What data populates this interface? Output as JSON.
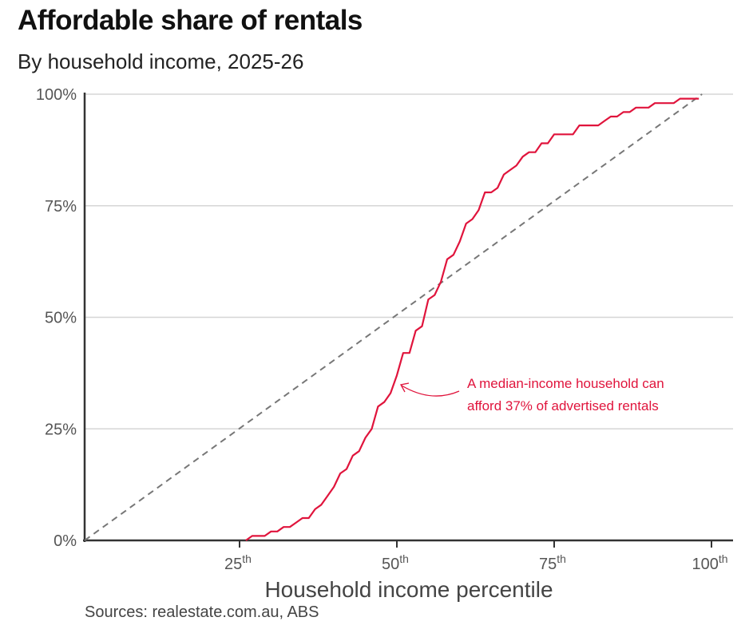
{
  "chart_data": {
    "type": "line",
    "title": "Affordable share of rentals",
    "subtitle": "By household income, 2025-26",
    "xlabel": "Household income percentile",
    "ylabel": "",
    "source": "Sources: realestate.com.au, ABS",
    "xlim": [
      0,
      100
    ],
    "ylim": [
      0,
      100
    ],
    "grid": true,
    "x_ticks": [
      {
        "value": 25,
        "label": "25",
        "sup": "th"
      },
      {
        "value": 50,
        "label": "50",
        "sup": "th"
      },
      {
        "value": 75,
        "label": "75",
        "sup": "th"
      },
      {
        "value": 100,
        "label": "100",
        "sup": "th"
      }
    ],
    "y_ticks": [
      {
        "value": 0,
        "label": "0%"
      },
      {
        "value": 25,
        "label": "25%"
      },
      {
        "value": 50,
        "label": "50%"
      },
      {
        "value": 75,
        "label": "75%"
      },
      {
        "value": 100,
        "label": "100%"
      }
    ],
    "series_color": "#e0143c",
    "reference_color": "#777777",
    "reference_line": [
      [
        0,
        0
      ],
      [
        98.5,
        100
      ]
    ],
    "series": [
      {
        "x": [
          26,
          27,
          28,
          29,
          30,
          31,
          32,
          33,
          34,
          35,
          36,
          37,
          38,
          39,
          40,
          41,
          42,
          43,
          44,
          45,
          46,
          47,
          48,
          49,
          50,
          51,
          52,
          53,
          54,
          55,
          56,
          57,
          58,
          59,
          60,
          61,
          62,
          63,
          64,
          65,
          66,
          67,
          68,
          69,
          70,
          71,
          72,
          73,
          74,
          75,
          76,
          77,
          78,
          79,
          80,
          81,
          82,
          83,
          84,
          85,
          86,
          87,
          88,
          89,
          90,
          91,
          92,
          93,
          94,
          95,
          96,
          97,
          98
        ],
        "y": [
          0,
          1,
          1,
          1,
          2,
          2,
          3,
          3,
          4,
          5,
          5,
          7,
          8,
          10,
          12,
          15,
          16,
          19,
          20,
          23,
          25,
          30,
          31,
          33,
          37,
          42,
          42,
          47,
          48,
          54,
          55,
          58,
          63,
          64,
          67,
          71,
          72,
          74,
          78,
          78,
          79,
          82,
          83,
          84,
          86,
          87,
          87,
          89,
          89,
          91,
          91,
          91,
          91,
          93,
          93,
          93,
          93,
          94,
          95,
          95,
          96,
          96,
          97,
          97,
          97,
          98,
          98,
          98,
          98,
          99,
          99,
          99,
          99
        ]
      }
    ],
    "annotation": {
      "lines": [
        "A median-income household can",
        "afford 37% of advertised rentals"
      ],
      "points_to": [
        50,
        37
      ]
    }
  }
}
